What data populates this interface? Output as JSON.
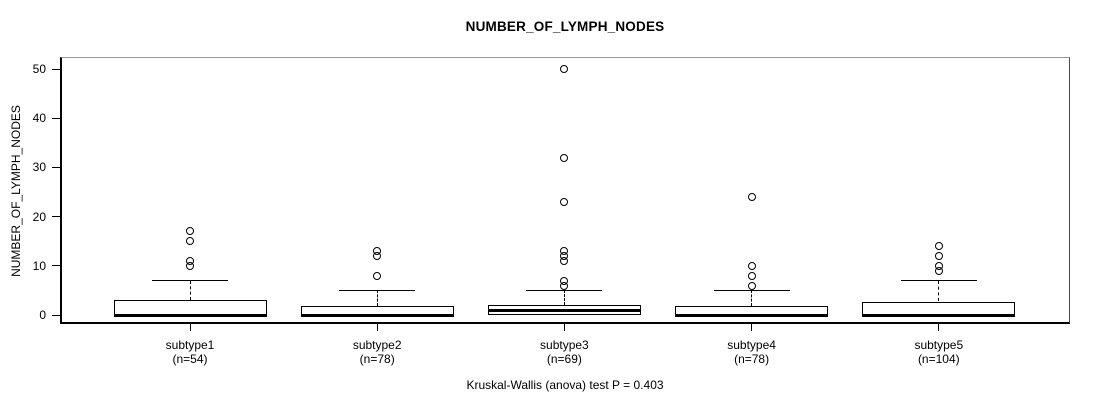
{
  "title": "NUMBER_OF_LYMPH_NODES",
  "caption": "Kruskal-Wallis (anova) test P = 0.403",
  "y_axis": {
    "label": "NUMBER_OF_LYMPH_NODES",
    "ticks": [
      0,
      10,
      20,
      30,
      40,
      50
    ]
  },
  "colors": {
    "line": "#000000",
    "box_fill": "#ffffff",
    "background": "#ffffff"
  },
  "chart_data": {
    "type": "boxplot",
    "title": "NUMBER_OF_LYMPH_NODES",
    "ylabel": "NUMBER_OF_LYMPH_NODES",
    "xlabel": "",
    "footer": "Kruskal-Wallis (anova) test P = 0.403",
    "ylim": [
      -1.83,
      52.44
    ],
    "yticks": [
      0,
      10,
      20,
      30,
      40,
      50
    ],
    "grid": false,
    "categories": [
      "subtype1",
      "subtype2",
      "subtype3",
      "subtype4",
      "subtype5"
    ],
    "groups": [
      {
        "label": "subtype1",
        "n_label": "(n=54)",
        "n": 54,
        "q1": 0,
        "median": 0,
        "q3": 3,
        "whisker_low": 0,
        "whisker_high": 7,
        "outliers": [
          10,
          11,
          15,
          17
        ]
      },
      {
        "label": "subtype2",
        "n_label": "(n=78)",
        "n": 78,
        "q1": 0,
        "median": 0,
        "q3": 1.75,
        "whisker_low": 0,
        "whisker_high": 5,
        "outliers": [
          8,
          12,
          13
        ]
      },
      {
        "label": "subtype3",
        "n_label": "(n=69)",
        "n": 69,
        "q1": 0,
        "median": 1,
        "q3": 2,
        "whisker_low": 0,
        "whisker_high": 5,
        "outliers": [
          6,
          7,
          11,
          12,
          13,
          23,
          32,
          50
        ]
      },
      {
        "label": "subtype4",
        "n_label": "(n=78)",
        "n": 78,
        "q1": 0,
        "median": 0,
        "q3": 1.75,
        "whisker_low": 0,
        "whisker_high": 5,
        "outliers": [
          6,
          8,
          10,
          24
        ]
      },
      {
        "label": "subtype5",
        "n_label": "(n=104)",
        "n": 104,
        "q1": 0,
        "median": 0,
        "q3": 2.75,
        "whisker_low": 0,
        "whisker_high": 7,
        "outliers": [
          9,
          10,
          12,
          14
        ]
      }
    ]
  }
}
